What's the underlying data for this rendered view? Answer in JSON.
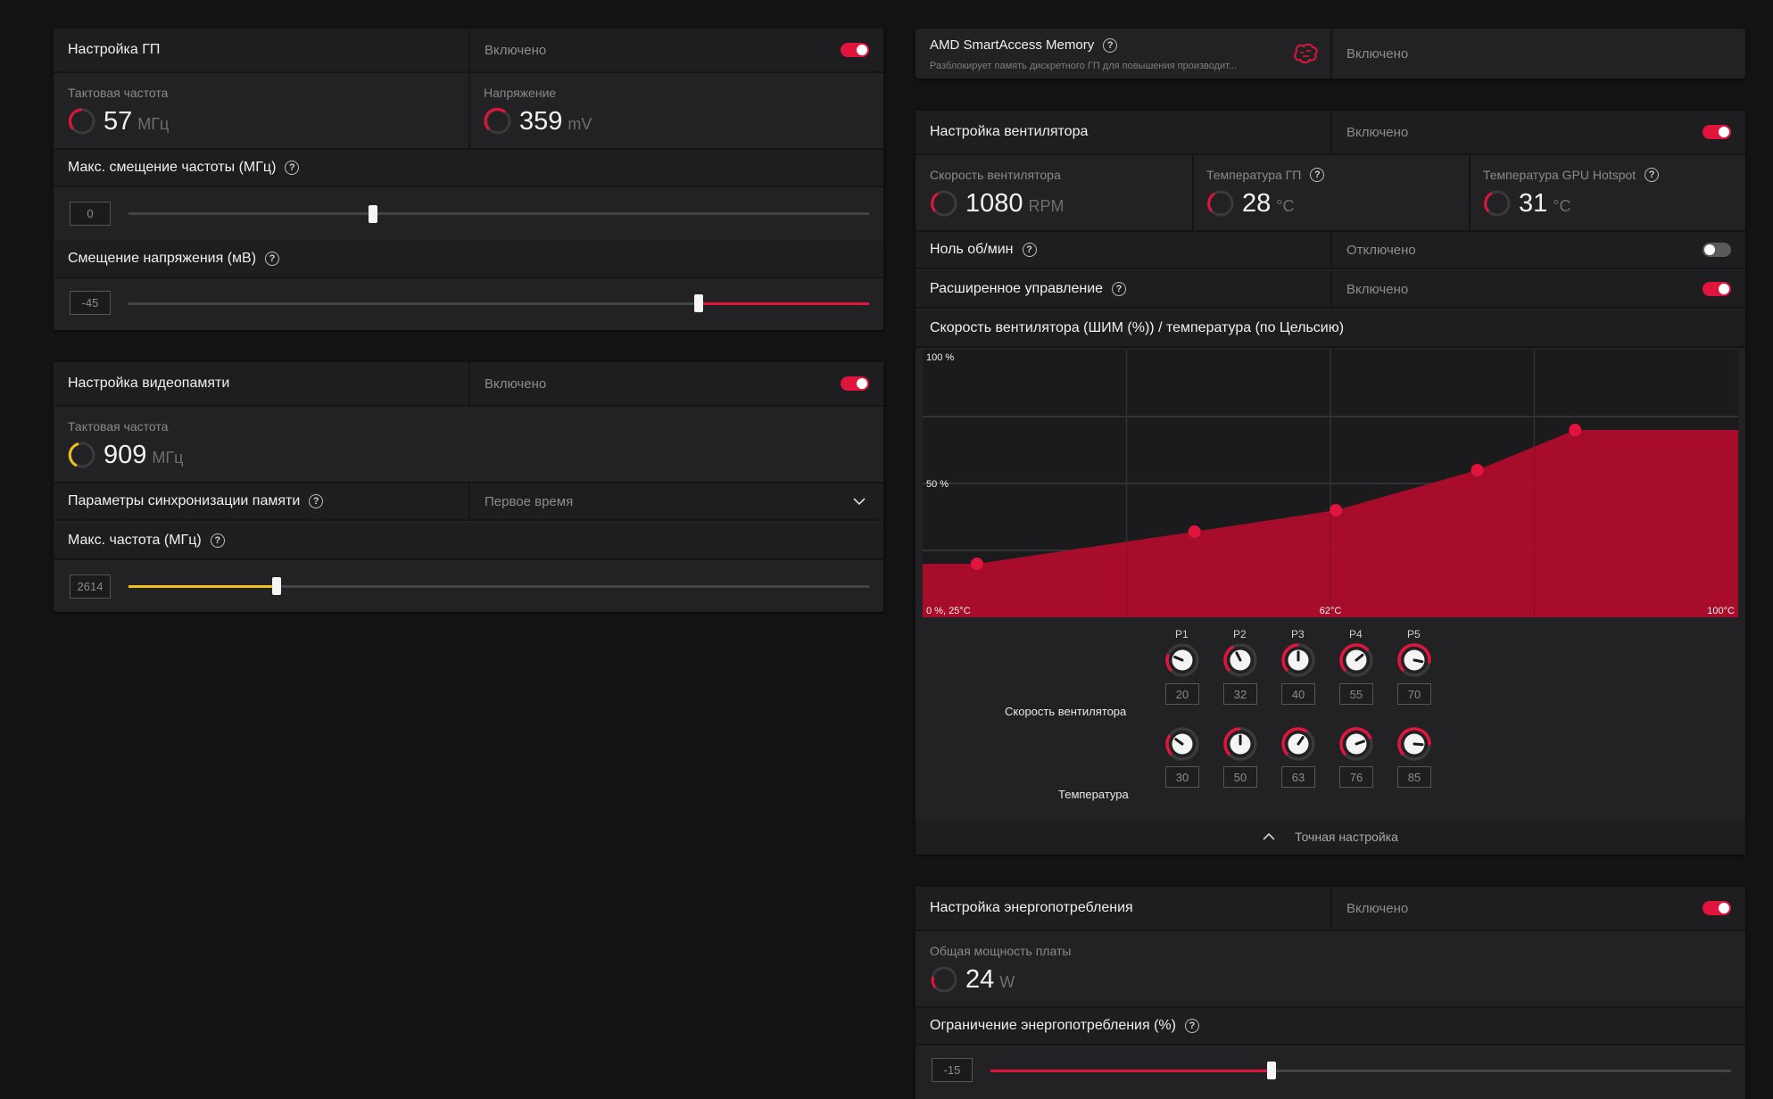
{
  "gpu_tuning": {
    "title": "Настройка ГП",
    "status": "Включено",
    "clock_label": "Тактовая частота",
    "clock_value": "57",
    "clock_unit": "МГц",
    "voltage_label": "Напряжение",
    "voltage_value": "359",
    "voltage_unit": "mV",
    "max_freq_offset_label": "Макс. смещение частоты (МГц)",
    "max_freq_offset_value": "0",
    "max_freq_offset_level": 0.33,
    "voltage_offset_label": "Смещение напряжения (мВ)",
    "voltage_offset_value": "-45",
    "voltage_offset_level": 0.77
  },
  "vram_tuning": {
    "title": "Настройка видеопамяти",
    "status": "Включено",
    "clock_label": "Тактовая частота",
    "clock_value": "909",
    "clock_unit": "МГц",
    "timing_label": "Параметры синхронизации памяти",
    "timing_value": "Первое время",
    "max_freq_label": "Макс. частота (МГц)",
    "max_freq_value": "2614",
    "max_freq_level": 0.2
  },
  "sam": {
    "title": "AMD SmartAccess Memory",
    "description": "Разблокирует память дискретного ГП для повышения производит...",
    "status": "Включено"
  },
  "fan_tuning": {
    "title": "Настройка вентилятора",
    "status": "Включено",
    "fan_speed_label": "Скорость вентилятора",
    "fan_speed_value": "1080",
    "fan_speed_unit": "RPM",
    "gpu_temp_label": "Температура ГП",
    "gpu_temp_value": "28",
    "gpu_temp_unit": "°C",
    "hotspot_label": "Температура GPU Hotspot",
    "hotspot_value": "31",
    "hotspot_unit": "°C",
    "zero_rpm_label": "Ноль об/мин",
    "zero_rpm_status": "Отключено",
    "advanced_label": "Расширенное управление",
    "advanced_status": "Включено",
    "curve_label": "Скорость вентилятора (ШИМ (%)) / температура (по Цельсию)",
    "speed_row_label": "Скорость вентилятора",
    "temp_row_label": "Температура",
    "points": [
      {
        "name": "P1",
        "speed": "20",
        "temp": "30"
      },
      {
        "name": "P2",
        "speed": "32",
        "temp": "50"
      },
      {
        "name": "P3",
        "speed": "40",
        "temp": "63"
      },
      {
        "name": "P4",
        "speed": "55",
        "temp": "76"
      },
      {
        "name": "P5",
        "speed": "70",
        "temp": "85"
      }
    ],
    "fine_tune_label": "Точная настройка"
  },
  "chart_data": {
    "type": "area",
    "x": [
      30,
      50,
      63,
      76,
      85,
      100
    ],
    "y": [
      20,
      32,
      40,
      55,
      70,
      70
    ],
    "xlim": [
      25,
      100
    ],
    "ylim": [
      0,
      100
    ],
    "tick_labels": {
      "y_top": "100 %",
      "y_mid": "50 %",
      "origin": "0 %, 25°C",
      "x_mid": "62°C",
      "x_max": "100°C"
    },
    "grid": true,
    "color": "#b00c2c"
  },
  "power_tuning": {
    "title": "Настройка энергопотребления",
    "status": "Включено",
    "board_power_label": "Общая мощность платы",
    "board_power_value": "24",
    "board_power_unit": "W",
    "power_limit_label": "Ограничение энергопотребления (%)",
    "power_limit_value": "-15",
    "power_limit_level": 0.38
  },
  "colors": {
    "accent": "#e0143c",
    "vram_accent": "#f2c01a",
    "bg": "#131315",
    "panel": "#222224"
  }
}
